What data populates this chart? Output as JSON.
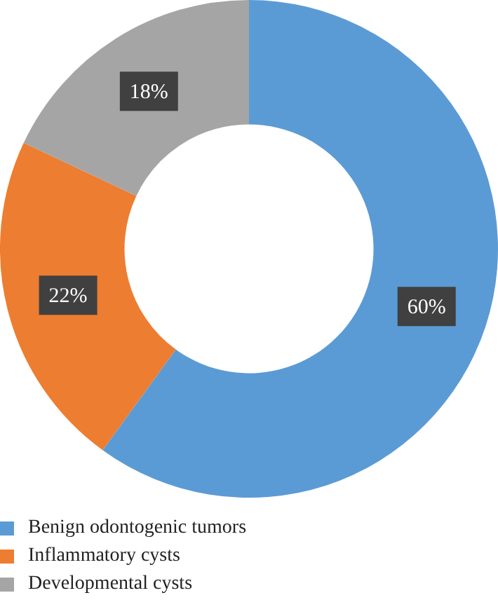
{
  "chart_data": {
    "type": "donut",
    "categories": [
      "Benign odontogenic tumors",
      "Inflammatory cysts",
      "Developmental cysts"
    ],
    "values": [
      60,
      22,
      18
    ],
    "colors": [
      "#5b9bd5",
      "#ed7d31",
      "#a5a5a5"
    ],
    "value_labels": [
      "60%",
      "22%",
      "18%"
    ],
    "legend": "bottom left"
  }
}
